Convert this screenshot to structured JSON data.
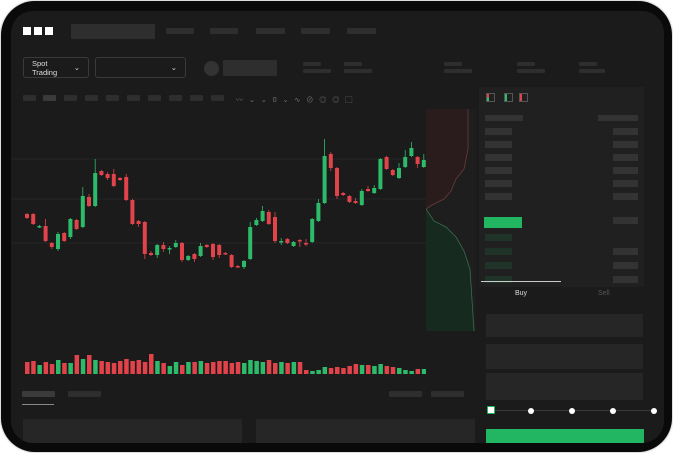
{
  "logo": "OKX",
  "header": {
    "spot_label": "Spot Trading",
    "pair_select_value": ""
  },
  "order_panel": {
    "buy_tab": "Buy",
    "sell_tab": "Sell",
    "leverage_steps": 5,
    "selected_step": 0
  },
  "colors": {
    "up": "#2dba6a",
    "down": "#e0434a",
    "accent": "#22b663",
    "bg": "#1b1b1b"
  },
  "chart_data": {
    "type": "candlestick",
    "candles": [
      [
        77,
        78,
        72,
        73
      ],
      [
        77,
        78,
        66,
        67
      ],
      [
        64,
        66,
        63,
        65
      ],
      [
        65,
        72,
        49,
        50
      ],
      [
        48,
        49,
        42,
        44
      ],
      [
        42,
        59,
        40,
        57
      ],
      [
        58,
        59,
        49,
        50
      ],
      [
        54,
        73,
        52,
        72
      ],
      [
        71,
        72,
        61,
        62
      ],
      [
        64,
        104,
        63,
        95
      ],
      [
        94,
        97,
        84,
        85
      ],
      [
        85,
        132,
        84,
        118
      ],
      [
        120,
        121,
        115,
        116
      ],
      [
        117,
        119,
        111,
        113
      ],
      [
        117,
        122,
        104,
        105
      ],
      [
        113,
        114,
        110,
        111
      ],
      [
        114,
        117,
        90,
        91
      ],
      [
        91,
        92,
        66,
        67
      ],
      [
        70,
        71,
        64,
        67
      ],
      [
        69,
        70,
        32,
        37
      ],
      [
        38,
        40,
        35,
        36
      ],
      [
        36,
        47,
        33,
        46
      ],
      [
        46,
        49,
        39,
        42
      ],
      [
        42,
        45,
        37,
        43
      ],
      [
        44,
        51,
        43,
        48
      ],
      [
        48,
        49,
        29,
        31
      ],
      [
        31,
        36,
        30,
        35
      ],
      [
        37,
        38,
        29,
        32
      ],
      [
        35,
        48,
        34,
        45
      ],
      [
        46,
        47,
        43,
        44
      ],
      [
        47,
        48,
        31,
        34
      ],
      [
        46,
        47,
        33,
        36
      ],
      [
        38,
        39,
        36,
        37
      ],
      [
        36,
        37,
        23,
        24
      ],
      [
        25,
        26,
        23,
        24
      ],
      [
        24,
        31,
        22,
        30
      ],
      [
        32,
        69,
        31,
        64
      ],
      [
        66,
        73,
        65,
        71
      ],
      [
        70,
        85,
        69,
        80
      ],
      [
        79,
        81,
        66,
        67
      ],
      [
        74,
        79,
        48,
        50
      ],
      [
        49,
        53,
        46,
        50
      ],
      [
        52,
        53,
        47,
        48
      ],
      [
        45,
        50,
        44,
        49
      ],
      [
        51,
        52,
        44,
        50
      ],
      [
        48,
        52,
        45,
        47
      ],
      [
        49,
        73,
        48,
        72
      ],
      [
        70,
        92,
        69,
        88
      ],
      [
        88,
        152,
        87,
        135
      ],
      [
        137,
        139,
        120,
        123
      ],
      [
        123,
        124,
        92,
        95
      ],
      [
        98,
        99,
        95,
        96
      ],
      [
        95,
        96,
        88,
        89
      ],
      [
        90,
        93,
        87,
        88
      ],
      [
        86,
        102,
        85,
        100
      ],
      [
        102,
        105,
        99,
        100
      ],
      [
        98,
        106,
        97,
        103
      ],
      [
        102,
        133,
        101,
        132
      ],
      [
        134,
        135,
        121,
        122
      ],
      [
        121,
        122,
        115,
        116
      ],
      [
        113,
        128,
        112,
        123
      ],
      [
        124,
        141,
        123,
        134
      ],
      [
        135,
        149,
        134,
        143
      ],
      [
        134,
        135,
        123,
        127
      ],
      [
        124,
        137,
        123,
        131
      ]
    ],
    "volumes": [
      12,
      13,
      9,
      12,
      10,
      14,
      11,
      11,
      19,
      15,
      19,
      14,
      13,
      12,
      11,
      13,
      15,
      13,
      14,
      12,
      20,
      13,
      11,
      8,
      12,
      9,
      12,
      12,
      13,
      11,
      12,
      13,
      13,
      11,
      12,
      11,
      14,
      13,
      12,
      14,
      11,
      12,
      11,
      12,
      12,
      4,
      3,
      4,
      7,
      6,
      7,
      6,
      8,
      10,
      9,
      9,
      8,
      10,
      8,
      7,
      6,
      4,
      3,
      5,
      5
    ]
  }
}
